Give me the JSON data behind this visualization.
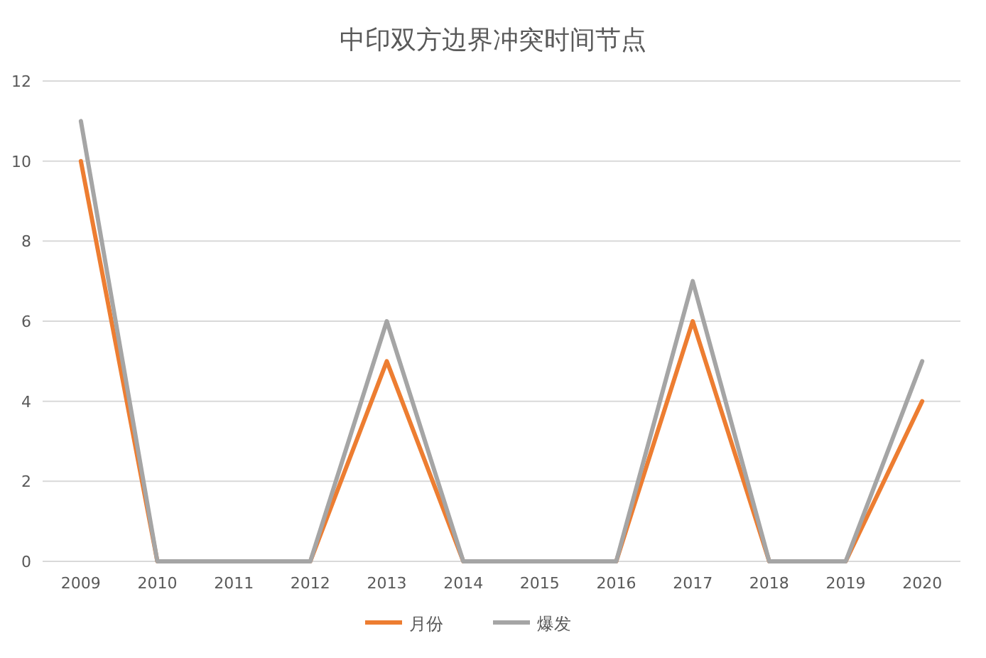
{
  "chart_data": {
    "type": "line",
    "title": "中印双方边界冲突时间节点",
    "categories": [
      "2009",
      "2010",
      "2011",
      "2012",
      "2013",
      "2014",
      "2015",
      "2016",
      "2017",
      "2018",
      "2019",
      "2020"
    ],
    "series": [
      {
        "name": "月份",
        "color": "#ed7d31",
        "values": [
          10,
          0,
          0,
          0,
          5,
          0,
          0,
          0,
          6,
          0,
          0,
          4
        ]
      },
      {
        "name": "爆发",
        "color": "#a5a5a5",
        "values": [
          11,
          0,
          0,
          0,
          6,
          0,
          0,
          0,
          7,
          0,
          0,
          5
        ]
      }
    ],
    "ylim": [
      0,
      12
    ],
    "yticks": [
      0,
      2,
      4,
      6,
      8,
      10,
      12
    ],
    "grid": "y",
    "legend": "bottom",
    "marker": "none",
    "line_style": "solid"
  }
}
